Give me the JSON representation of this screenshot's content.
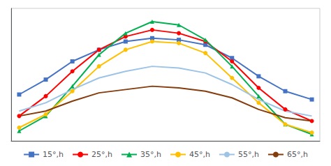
{
  "chart_data": {
    "type": "line",
    "x": [
      1,
      2,
      3,
      4,
      5,
      6,
      7,
      8,
      9,
      10,
      11,
      12
    ],
    "series": [
      {
        "name": "15°,h",
        "color": "#4472C4",
        "marker": "square",
        "values": [
          2.8,
          3.7,
          4.8,
          5.5,
          6.0,
          6.2,
          6.1,
          5.8,
          5.0,
          3.9,
          3.0,
          2.5
        ]
      },
      {
        "name": "25°,h",
        "color": "#FF0000",
        "marker": "circle",
        "values": [
          1.5,
          2.7,
          4.2,
          5.5,
          6.3,
          6.7,
          6.5,
          6.0,
          4.8,
          3.2,
          1.9,
          1.2
        ]
      },
      {
        "name": "35°,h",
        "color": "#00B050",
        "marker": "triangle",
        "values": [
          0.6,
          1.5,
          3.3,
          5.2,
          6.5,
          7.2,
          7.0,
          6.1,
          4.5,
          2.7,
          1.0,
          0.4
        ]
      },
      {
        "name": "45°,h",
        "color": "#FFC000",
        "marker": "circle",
        "values": [
          0.8,
          1.6,
          3.0,
          4.5,
          5.5,
          6.0,
          5.9,
          5.3,
          3.8,
          2.3,
          1.0,
          0.5
        ]
      },
      {
        "name": "55°,h",
        "color": "#9DC3E6",
        "marker": "none",
        "values": [
          1.8,
          2.3,
          3.1,
          3.8,
          4.2,
          4.5,
          4.4,
          4.1,
          3.4,
          2.5,
          1.8,
          1.5
        ]
      },
      {
        "name": "65°,h",
        "color": "#843C0C",
        "marker": "none",
        "values": [
          1.5,
          1.8,
          2.4,
          2.9,
          3.1,
          3.3,
          3.2,
          3.0,
          2.6,
          1.9,
          1.4,
          1.2
        ]
      }
    ],
    "xlim": [
      0.7,
      12.3
    ],
    "xticks": [],
    "ylim": [
      0,
      8.0
    ],
    "yticks": [],
    "grid": false,
    "tick_labels": false,
    "legend": "bottom"
  }
}
